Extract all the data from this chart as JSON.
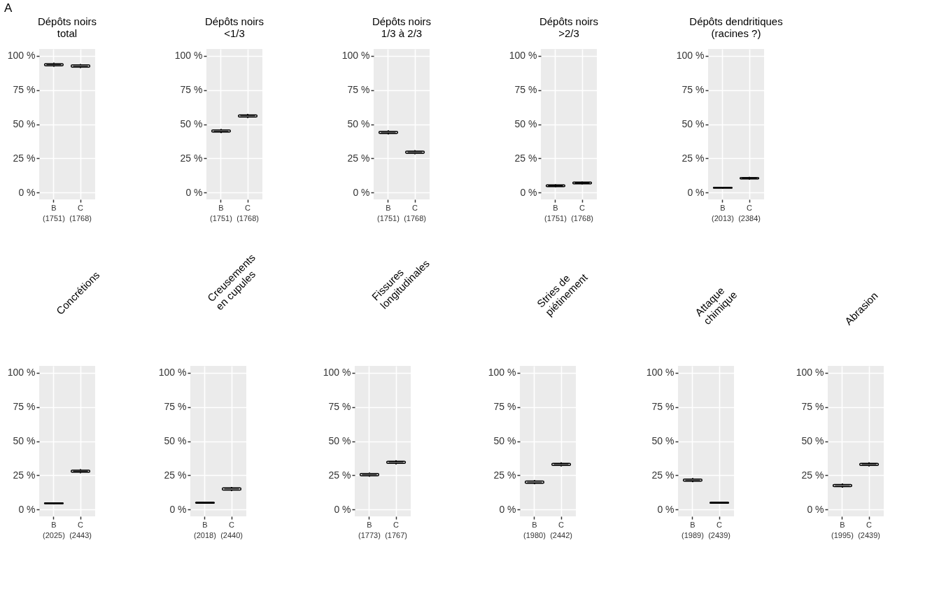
{
  "chart_data": [
    {
      "type": "box",
      "title": "Dépôts noirs\ntotal",
      "annotations": [
        "A"
      ],
      "categories": [
        "B\n(1751)",
        "C\n(1768)"
      ],
      "boxes": [
        {
          "low": 92,
          "q1": 92.7,
          "median": 93.5,
          "q3": 94.3,
          "high": 95
        },
        {
          "low": 91,
          "q1": 91.7,
          "median": 92.5,
          "q3": 93.3,
          "high": 94
        }
      ],
      "ylim": [
        -5,
        105
      ],
      "yticks": [
        {
          "value": 0,
          "label": "0 %"
        },
        {
          "value": 25,
          "label": "25 %"
        },
        {
          "value": 50,
          "label": "50 %"
        },
        {
          "value": 75,
          "label": "75 %"
        },
        {
          "value": 100,
          "label": "100 %"
        }
      ],
      "grid": true
    },
    {
      "type": "box",
      "title": "Dépôts noirs\n<1/3",
      "categories": [
        "B\n(1751)",
        "C\n(1768)"
      ],
      "boxes": [
        {
          "low": 43.5,
          "q1": 44.2,
          "median": 45,
          "q3": 45.8,
          "high": 46.5
        },
        {
          "low": 54.5,
          "q1": 55.2,
          "median": 56,
          "q3": 56.8,
          "high": 57.5
        }
      ],
      "ylim": [
        -5,
        105
      ],
      "yticks": [
        {
          "value": 0,
          "label": "0 %"
        },
        {
          "value": 25,
          "label": "25 %"
        },
        {
          "value": 50,
          "label": "50 %"
        },
        {
          "value": 75,
          "label": "75 %"
        },
        {
          "value": 100,
          "label": "100 %"
        }
      ],
      "grid": true
    },
    {
      "type": "box",
      "title": "Dépôts noirs\n1/3 à 2/3",
      "categories": [
        "B\n(1751)",
        "C\n(1768)"
      ],
      "boxes": [
        {
          "low": 42.5,
          "q1": 43.2,
          "median": 44,
          "q3": 44.8,
          "high": 45.5
        },
        {
          "low": 28,
          "q1": 28.7,
          "median": 29.5,
          "q3": 30.3,
          "high": 31
        }
      ],
      "ylim": [
        -5,
        105
      ],
      "yticks": [
        {
          "value": 0,
          "label": "0 %"
        },
        {
          "value": 25,
          "label": "25 %"
        },
        {
          "value": 50,
          "label": "50 %"
        },
        {
          "value": 75,
          "label": "75 %"
        },
        {
          "value": 100,
          "label": "100 %"
        }
      ],
      "grid": true
    },
    {
      "type": "box",
      "title": "Dépôts noirs\n>2/3",
      "categories": [
        "B\n(1751)",
        "C\n(1768)"
      ],
      "boxes": [
        {
          "low": 4,
          "q1": 4.4,
          "median": 5,
          "q3": 5.6,
          "high": 6
        },
        {
          "low": 6,
          "q1": 6.4,
          "median": 7,
          "q3": 7.6,
          "high": 8
        }
      ],
      "ylim": [
        -5,
        105
      ],
      "yticks": [
        {
          "value": 0,
          "label": "0 %"
        },
        {
          "value": 25,
          "label": "25 %"
        },
        {
          "value": 50,
          "label": "50 %"
        },
        {
          "value": 75,
          "label": "75 %"
        },
        {
          "value": 100,
          "label": "100 %"
        }
      ],
      "grid": true
    },
    {
      "type": "box",
      "title": "Dépôts dendritiques\n(racines ?)",
      "categories": [
        "B\n(2013)",
        "C\n(2384)"
      ],
      "boxes": [
        {
          "low": 3,
          "q1": 3.2,
          "median": 3.5,
          "q3": 3.8,
          "high": 4
        },
        {
          "low": 9.5,
          "q1": 10,
          "median": 10.5,
          "q3": 11,
          "high": 11.5
        }
      ],
      "ylim": [
        -5,
        105
      ],
      "yticks": [
        {
          "value": 0,
          "label": "0 %"
        },
        {
          "value": 25,
          "label": "25 %"
        },
        {
          "value": 50,
          "label": "50 %"
        },
        {
          "value": 75,
          "label": "75 %"
        },
        {
          "value": 100,
          "label": "100 %"
        }
      ],
      "grid": true
    },
    {
      "type": "box",
      "title": "Concrétions",
      "categories": [
        "B\n(2025)",
        "C\n(2443)"
      ],
      "boxes": [
        {
          "low": 4,
          "q1": 4.2,
          "median": 4.5,
          "q3": 4.8,
          "high": 5
        },
        {
          "low": 26.5,
          "q1": 27.2,
          "median": 28,
          "q3": 28.8,
          "high": 29.5
        }
      ],
      "ylim": [
        -5,
        105
      ],
      "yticks": [
        {
          "value": 0,
          "label": "0 %"
        },
        {
          "value": 25,
          "label": "25 %"
        },
        {
          "value": 50,
          "label": "50 %"
        },
        {
          "value": 75,
          "label": "75 %"
        },
        {
          "value": 100,
          "label": "100 %"
        }
      ],
      "grid": true
    },
    {
      "type": "box",
      "title": "Creusements\nen cupules",
      "categories": [
        "B\n(2018)",
        "C\n(2440)"
      ],
      "boxes": [
        {
          "low": 4.5,
          "q1": 4.6,
          "median": 5,
          "q3": 5.4,
          "high": 5.5
        },
        {
          "low": 13.5,
          "q1": 14.2,
          "median": 15,
          "q3": 15.8,
          "high": 16.5
        }
      ],
      "ylim": [
        -5,
        105
      ],
      "yticks": [
        {
          "value": 0,
          "label": "0 %"
        },
        {
          "value": 25,
          "label": "25 %"
        },
        {
          "value": 50,
          "label": "50 %"
        },
        {
          "value": 75,
          "label": "75 %"
        },
        {
          "value": 100,
          "label": "100 %"
        }
      ],
      "grid": true
    },
    {
      "type": "box",
      "title": "Fissures\nlongitudinales",
      "categories": [
        "B\n(1773)",
        "C\n(1767)"
      ],
      "boxes": [
        {
          "low": 24,
          "q1": 24.7,
          "median": 25.5,
          "q3": 26.3,
          "high": 27
        },
        {
          "low": 33,
          "q1": 33.7,
          "median": 34.5,
          "q3": 35.3,
          "high": 36
        }
      ],
      "ylim": [
        -5,
        105
      ],
      "yticks": [
        {
          "value": 0,
          "label": "0 %"
        },
        {
          "value": 25,
          "label": "25 %"
        },
        {
          "value": 50,
          "label": "50 %"
        },
        {
          "value": 75,
          "label": "75 %"
        },
        {
          "value": 100,
          "label": "100 %"
        }
      ],
      "grid": true
    },
    {
      "type": "box",
      "title": "Stries de\npiétinement",
      "categories": [
        "B\n(1980)",
        "C\n(2442)"
      ],
      "boxes": [
        {
          "low": 18.5,
          "q1": 19.2,
          "median": 20,
          "q3": 20.8,
          "high": 21.5
        },
        {
          "low": 31.5,
          "q1": 32.2,
          "median": 33,
          "q3": 33.8,
          "high": 34.5
        }
      ],
      "ylim": [
        -5,
        105
      ],
      "yticks": [
        {
          "value": 0,
          "label": "0 %"
        },
        {
          "value": 25,
          "label": "25 %"
        },
        {
          "value": 50,
          "label": "50 %"
        },
        {
          "value": 75,
          "label": "75 %"
        },
        {
          "value": 100,
          "label": "100 %"
        }
      ],
      "grid": true
    },
    {
      "type": "box",
      "title": "Attaque\nchimique",
      "categories": [
        "B\n(1989)",
        "C\n(2439)"
      ],
      "boxes": [
        {
          "low": 20,
          "q1": 20.7,
          "median": 21.5,
          "q3": 22.3,
          "high": 23
        },
        {
          "low": 4.5,
          "q1": 4.6,
          "median": 5,
          "q3": 5.4,
          "high": 5.5
        }
      ],
      "ylim": [
        -5,
        105
      ],
      "yticks": [
        {
          "value": 0,
          "label": "0 %"
        },
        {
          "value": 25,
          "label": "25 %"
        },
        {
          "value": 50,
          "label": "50 %"
        },
        {
          "value": 75,
          "label": "75 %"
        },
        {
          "value": 100,
          "label": "100 %"
        }
      ],
      "grid": true
    },
    {
      "type": "box",
      "title": "Abrasion",
      "categories": [
        "B\n(1995)",
        "C\n(2439)"
      ],
      "boxes": [
        {
          "low": 16,
          "q1": 16.7,
          "median": 17.5,
          "q3": 18.3,
          "high": 19
        },
        {
          "low": 31.5,
          "q1": 32.2,
          "median": 33,
          "q3": 33.8,
          "high": 34.5
        }
      ],
      "ylim": [
        -5,
        105
      ],
      "yticks": [
        {
          "value": 0,
          "label": "0 %"
        },
        {
          "value": 25,
          "label": "25 %"
        },
        {
          "value": 50,
          "label": "50 %"
        },
        {
          "value": 75,
          "label": "75 %"
        },
        {
          "value": 100,
          "label": "100 %"
        }
      ],
      "grid": true
    }
  ]
}
